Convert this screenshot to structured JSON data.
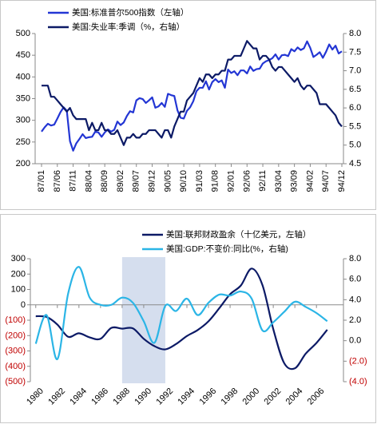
{
  "chart_data": [
    {
      "type": "line",
      "legend": "upper left",
      "categories": [
        "87/01",
        null,
        null,
        null,
        null,
        "87/06",
        null,
        null,
        null,
        null,
        "87/11",
        null,
        null,
        null,
        null,
        "88/04",
        null,
        null,
        null,
        null,
        "88/09",
        null,
        null,
        null,
        null,
        "89/02",
        null,
        null,
        null,
        null,
        "89/07",
        null,
        null,
        null,
        null,
        "89/12",
        null,
        null,
        null,
        null,
        "90/05",
        null,
        null,
        null,
        null,
        "90/10",
        null,
        null,
        null,
        null,
        "91/03",
        null,
        null,
        null,
        null,
        "91/08",
        null,
        null,
        null,
        null,
        "92/01",
        null,
        null,
        null,
        null,
        "92/06",
        null,
        null,
        null,
        null,
        "92/11",
        null,
        null,
        null,
        null,
        "93/04",
        null,
        null,
        null,
        null,
        "93/09",
        null,
        null,
        null,
        null,
        "94/02",
        null,
        null,
        null,
        null,
        "94/07",
        null,
        null,
        null,
        null,
        "94/12"
      ],
      "series": [
        {
          "name": "美国:标准普尔500指数（左轴）",
          "color": "#2336d4",
          "values": [
            274,
            284,
            292,
            288,
            290,
            304,
            319,
            330,
            322,
            252,
            230,
            247,
            257,
            268,
            259,
            261,
            262,
            274,
            272,
            262,
            272,
            279,
            274,
            278,
            297,
            289,
            295,
            310,
            321,
            318,
            346,
            351,
            349,
            340,
            346,
            353,
            329,
            332,
            340,
            331,
            361,
            358,
            356,
            323,
            306,
            304,
            322,
            330,
            344,
            367,
            375,
            375,
            390,
            371,
            388,
            395,
            388,
            392,
            375,
            417,
            409,
            413,
            404,
            415,
            415,
            408,
            424,
            414,
            418,
            419,
            431,
            436,
            439,
            443,
            452,
            440,
            450,
            451,
            448,
            464,
            459,
            468,
            462,
            466,
            482,
            467,
            446,
            451,
            457,
            444,
            458,
            475,
            463,
            472,
            454,
            459
          ]
        },
        {
          "name": "美国:失业率:季调（%，右轴）",
          "color": "#0c1a66",
          "axis": "y2",
          "values": [
            6.6,
            6.6,
            6.6,
            6.3,
            6.3,
            6.2,
            6.1,
            6.0,
            5.9,
            6.0,
            5.8,
            5.7,
            5.7,
            5.7,
            5.7,
            5.4,
            5.6,
            5.4,
            5.4,
            5.6,
            5.4,
            5.4,
            5.3,
            5.3,
            5.4,
            5.2,
            5.0,
            5.2,
            5.2,
            5.3,
            5.2,
            5.2,
            5.3,
            5.3,
            5.4,
            5.4,
            5.4,
            5.3,
            5.2,
            5.4,
            5.4,
            5.2,
            5.5,
            5.7,
            5.9,
            5.9,
            6.2,
            6.3,
            6.4,
            6.6,
            6.8,
            6.7,
            6.9,
            6.9,
            6.8,
            6.9,
            6.9,
            7.0,
            7.0,
            7.3,
            7.3,
            7.4,
            7.4,
            7.4,
            7.6,
            7.8,
            7.7,
            7.6,
            7.6,
            7.3,
            7.4,
            7.4,
            7.3,
            7.1,
            7.0,
            7.1,
            7.1,
            7.0,
            6.9,
            6.8,
            6.7,
            6.8,
            6.6,
            6.5,
            6.6,
            6.6,
            6.5,
            6.4,
            6.1,
            6.1,
            6.1,
            6.0,
            5.9,
            5.8,
            5.6,
            5.5
          ]
        }
      ],
      "ylim": [
        200,
        500
      ],
      "yticks": [
        200,
        250,
        300,
        350,
        400,
        450,
        500
      ],
      "y2lim": [
        4.5,
        8
      ],
      "y2ticks": [
        4.5,
        {
          "value": 5,
          "label": "5.0"
        },
        5.5,
        {
          "value": 6,
          "label": "6.0"
        },
        6.5,
        {
          "value": 7,
          "label": "7.0"
        },
        7.5,
        {
          "value": 8,
          "label": "8.0"
        }
      ]
    },
    {
      "type": "line",
      "legend": "upper right",
      "negative_tick_color": "#c00000",
      "shaded_span": [
        1988,
        1992
      ],
      "shade_color": "#d5deee",
      "x": [
        1980,
        1981,
        1982,
        1983,
        1984,
        1985,
        1986,
        1987,
        1988,
        1989,
        1990,
        1991,
        1992,
        1993,
        1994,
        1995,
        1996,
        1997,
        1998,
        1999,
        2000,
        2001,
        2002,
        2003,
        2004,
        2005,
        2006,
        2007
      ],
      "series": [
        {
          "name": "美国:联邦财政盈余（十亿美元，左轴）",
          "color": "#0c1a66",
          "values": [
            -74,
            -79,
            -128,
            -208,
            -185,
            -212,
            -221,
            -150,
            -155,
            -153,
            -221,
            -269,
            -290,
            -255,
            -203,
            -164,
            -107,
            -22,
            69,
            126,
            236,
            128,
            -158,
            -378,
            -413,
            -318,
            -248,
            -162
          ]
        },
        {
          "name": "美国:GDP:不变价:同比(%，右轴)",
          "color": "#2bb5e6",
          "axis": "y2",
          "values": [
            -0.3,
            2.5,
            -1.8,
            4.6,
            7.2,
            4.2,
            3.5,
            3.5,
            4.2,
            3.7,
            1.9,
            -0.2,
            3.4,
            2.9,
            4.1,
            2.5,
            3.7,
            4.5,
            4.4,
            4.8,
            4.1,
            1.0,
            1.8,
            2.8,
            3.8,
            3.3,
            2.7,
            1.9
          ]
        }
      ],
      "xlim": [
        1979.5,
        2008.5
      ],
      "xticks": [
        1980,
        1982,
        1984,
        1986,
        1988,
        1990,
        1992,
        1994,
        1996,
        1998,
        2000,
        2002,
        2004,
        2006
      ],
      "ylim": [
        -500,
        300
      ],
      "yticks": [
        300,
        200,
        100,
        0,
        {
          "value": -100,
          "label": "(100)"
        },
        {
          "value": -200,
          "label": "(200)"
        },
        {
          "value": -300,
          "label": "(300)"
        },
        {
          "value": -400,
          "label": "(400)"
        },
        {
          "value": -500,
          "label": "(500)"
        }
      ],
      "y2lim": [
        -4,
        8
      ],
      "y2ticks": [
        {
          "value": 8,
          "label": "8.0"
        },
        {
          "value": 6,
          "label": "6.0"
        },
        {
          "value": 4,
          "label": "4.0"
        },
        {
          "value": 2,
          "label": "2.0"
        },
        {
          "value": 0,
          "label": "0.0"
        },
        {
          "value": -2,
          "label": "(2.0)"
        },
        {
          "value": -4,
          "label": "(4.0)"
        }
      ]
    }
  ]
}
